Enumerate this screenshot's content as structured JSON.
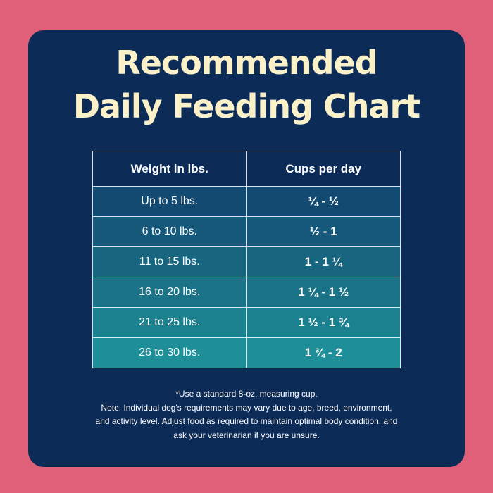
{
  "colors": {
    "page_background": "#e0607a",
    "card_background": "#0d2b57",
    "title_color": "#fbf1c8",
    "row_colors": [
      "#134a72",
      "#165879",
      "#186580",
      "#1a7387",
      "#1c818f",
      "#1e8e98"
    ]
  },
  "title": {
    "line1": "Recommended",
    "line2": "Daily Feeding Chart"
  },
  "table": {
    "headers": [
      "Weight in lbs.",
      "Cups per day"
    ],
    "rows": [
      {
        "weight": "Up to 5 lbs.",
        "cups": "¼ - ½"
      },
      {
        "weight": "6 to 10 lbs.",
        "cups": "½ - 1"
      },
      {
        "weight": "11 to 15 lbs.",
        "cups": "1 - 1 ¼"
      },
      {
        "weight": "16 to 20 lbs.",
        "cups": "1 ¼ - 1 ½"
      },
      {
        "weight": "21 to 25 lbs.",
        "cups": "1 ½ - 1 ¾"
      },
      {
        "weight": "26 to 30 lbs.",
        "cups": "1 ¾ - 2"
      }
    ]
  },
  "footnote": {
    "line1": "*Use a standard 8-oz. measuring cup.",
    "line2": "Note: Individual dog's requirements may vary due to age, breed, environment,",
    "line3": "and activity level. Adjust food as required to maintain optimal body condition, and",
    "line4": "ask your veterinarian if you are unsure."
  }
}
